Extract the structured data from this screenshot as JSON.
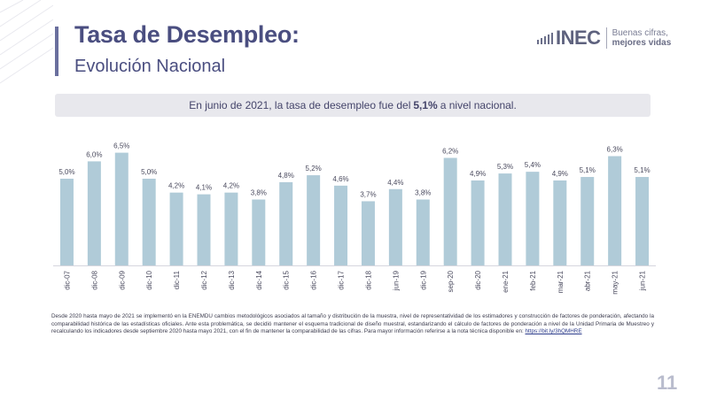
{
  "header": {
    "title": "Tasa de Desempleo:",
    "subtitle": "Evolución Nacional"
  },
  "logo": {
    "name": "INEC",
    "tagline_1": "Buenas cifras,",
    "tagline_2": "mejores vidas"
  },
  "callout": {
    "before": "En junio de 2021, la tasa de desempleo fue del",
    "highlight": "5,1%",
    "after": "a nivel nacional."
  },
  "chart_data": {
    "type": "bar",
    "title": "",
    "xlabel": "",
    "ylabel": "",
    "ylim": [
      0,
      7
    ],
    "grid": false,
    "bar_color": "#b0cbd8",
    "categories": [
      "dic-07",
      "dic-08",
      "dic-09",
      "dic-10",
      "dic-11",
      "dic-12",
      "dic-13",
      "dic-14",
      "dic-15",
      "dic-16",
      "dic-17",
      "dic-18",
      "jun-19",
      "dic-19",
      "sep-20",
      "dic-20",
      "ene-21",
      "feb-21",
      "mar-21",
      "abr-21",
      "may-21",
      "jun-21"
    ],
    "values": [
      5.0,
      6.0,
      6.5,
      5.0,
      4.2,
      4.1,
      4.2,
      3.8,
      4.8,
      5.2,
      4.6,
      3.7,
      4.4,
      3.8,
      6.2,
      4.9,
      5.3,
      5.4,
      4.9,
      5.1,
      6.3,
      5.1
    ],
    "data_labels": [
      "5,0%",
      "6,0%",
      "6,5%",
      "5,0%",
      "4,2%",
      "4,1%",
      "4,2%",
      "3,8%",
      "4,8%",
      "5,2%",
      "4,6%",
      "3,7%",
      "4,4%",
      "3,8%",
      "6,2%",
      "4,9%",
      "5,3%",
      "5,4%",
      "4,9%",
      "5,1%",
      "6,3%",
      "5,1%"
    ]
  },
  "footnote": {
    "text": "Desde 2020 hasta mayo de 2021 se implementó en la ENEMDU cambios metodológicos asociados al tamaño y distribución de la muestra, nivel de representatividad de los estimadores y construcción de factores de ponderación, afectando la comparabilidad histórica de las estadísticas oficiales. Ante esta problemática, se decidió mantener el esquema tradicional de diseño muestral, estandarizando el cálculo de factores de ponderación a nivel de la Unidad Primaria de Muestreo y recalculando los indicadores desde septiembre 2020 hasta mayo  2021, con el fin de mantener la comparabilidad de las cifras. Para mayor información referirse a la nota técnica disponible en:",
    "link": "https://bit.ly/3hQMHRE"
  },
  "page_number": "11"
}
